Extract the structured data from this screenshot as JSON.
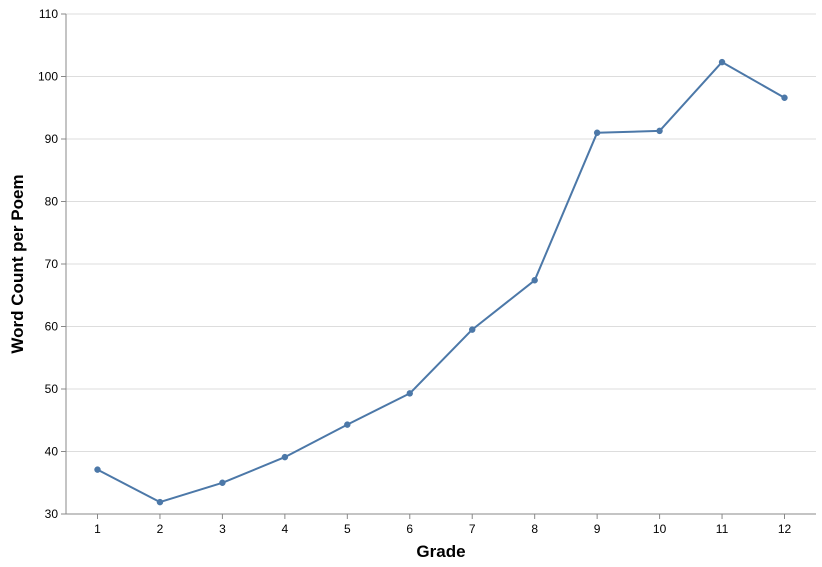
{
  "chart_data": {
    "type": "line",
    "xlabel": "Grade",
    "ylabel": "Word Count per Poem",
    "categories": [
      "1",
      "2",
      "3",
      "4",
      "5",
      "6",
      "7",
      "8",
      "9",
      "10",
      "11",
      "12"
    ],
    "series": [
      {
        "values": [
          37.1,
          31.9,
          35.0,
          39.1,
          44.3,
          49.3,
          59.5,
          67.4,
          91.0,
          91.3,
          102.3,
          96.6
        ]
      }
    ],
    "ylim": [
      30,
      110
    ],
    "yticks": [
      "30",
      "40",
      "50",
      "60",
      "70",
      "80",
      "90",
      "100",
      "110"
    ],
    "grid": true,
    "line_color": "#4c78a8"
  }
}
